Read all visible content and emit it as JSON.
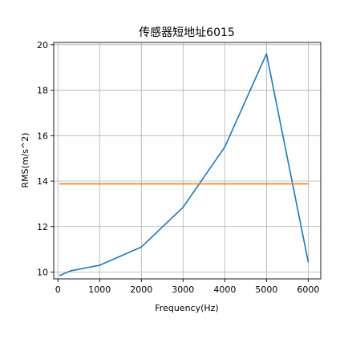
{
  "chart_data": {
    "type": "line",
    "title": "传感器短地址6015",
    "xlabel": "Frequency(Hz)",
    "ylabel": "RMS(m/s^2)",
    "xlim": [
      -100,
      6300
    ],
    "ylim": [
      9.7,
      20.1
    ],
    "xticks": [
      0,
      1000,
      2000,
      3000,
      4000,
      5000,
      6000
    ],
    "yticks": [
      10,
      12,
      14,
      16,
      18,
      20
    ],
    "grid": true,
    "series": [
      {
        "color": "#1f77b4",
        "x": [
          50,
          300,
          1000,
          2000,
          3000,
          4000,
          5000,
          6000
        ],
        "y": [
          9.85,
          10.05,
          10.3,
          11.1,
          12.85,
          15.5,
          19.6,
          10.45
        ]
      },
      {
        "color": "#ff7f0e",
        "x": [
          50,
          6000
        ],
        "y": [
          13.88,
          13.88
        ]
      }
    ]
  }
}
